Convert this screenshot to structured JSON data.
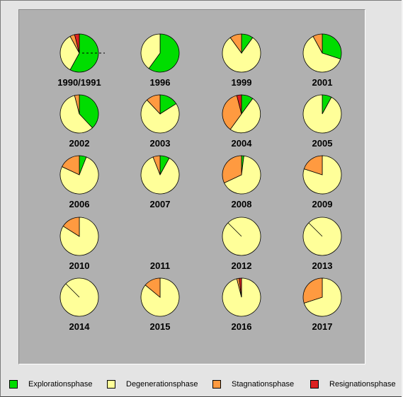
{
  "chart_data": {
    "type": "pie",
    "series": [
      {
        "name": "Explorationsphase",
        "color": "#00dd00"
      },
      {
        "name": "Degenerationsphase",
        "color": "#ffff99"
      },
      {
        "name": "Stagnationsphase",
        "color": "#ff9a40"
      },
      {
        "name": "Resignationsphase",
        "color": "#dd2020"
      }
    ],
    "pies": [
      {
        "label": "1990/1991",
        "values": [
          58,
          34,
          4,
          4
        ]
      },
      {
        "label": "1996",
        "values": [
          60,
          40,
          0,
          0
        ]
      },
      {
        "label": "1999",
        "values": [
          10,
          80,
          10,
          0
        ]
      },
      {
        "label": "2001",
        "values": [
          30,
          62,
          8,
          0
        ]
      },
      {
        "label": "2002",
        "values": [
          38,
          58,
          4,
          0
        ]
      },
      {
        "label": "2003",
        "values": [
          16,
          72,
          12,
          0
        ]
      },
      {
        "label": "2004",
        "values": [
          10,
          50,
          36,
          4
        ]
      },
      {
        "label": "2005",
        "values": [
          8,
          92,
          0,
          0
        ]
      },
      {
        "label": "2006",
        "values": [
          6,
          76,
          18,
          0
        ]
      },
      {
        "label": "2007",
        "values": [
          8,
          86,
          6,
          0
        ]
      },
      {
        "label": "2008",
        "values": [
          2,
          66,
          32,
          0
        ]
      },
      {
        "label": "2009",
        "values": [
          0,
          80,
          20,
          0
        ]
      },
      {
        "label": "2010",
        "values": [
          0,
          84,
          16,
          0
        ]
      },
      {
        "label": "2011",
        "values": []
      },
      {
        "label": "2012",
        "values": [
          0,
          100,
          0,
          0
        ]
      },
      {
        "label": "2013",
        "values": [
          0,
          100,
          0,
          0
        ]
      },
      {
        "label": "2014",
        "values": [
          0,
          100,
          0,
          0
        ]
      },
      {
        "label": "2015",
        "values": [
          0,
          86,
          14,
          0
        ]
      },
      {
        "label": "2016",
        "values": [
          0,
          96,
          2,
          2
        ]
      },
      {
        "label": "2017",
        "values": [
          0,
          70,
          30,
          0
        ]
      }
    ]
  }
}
